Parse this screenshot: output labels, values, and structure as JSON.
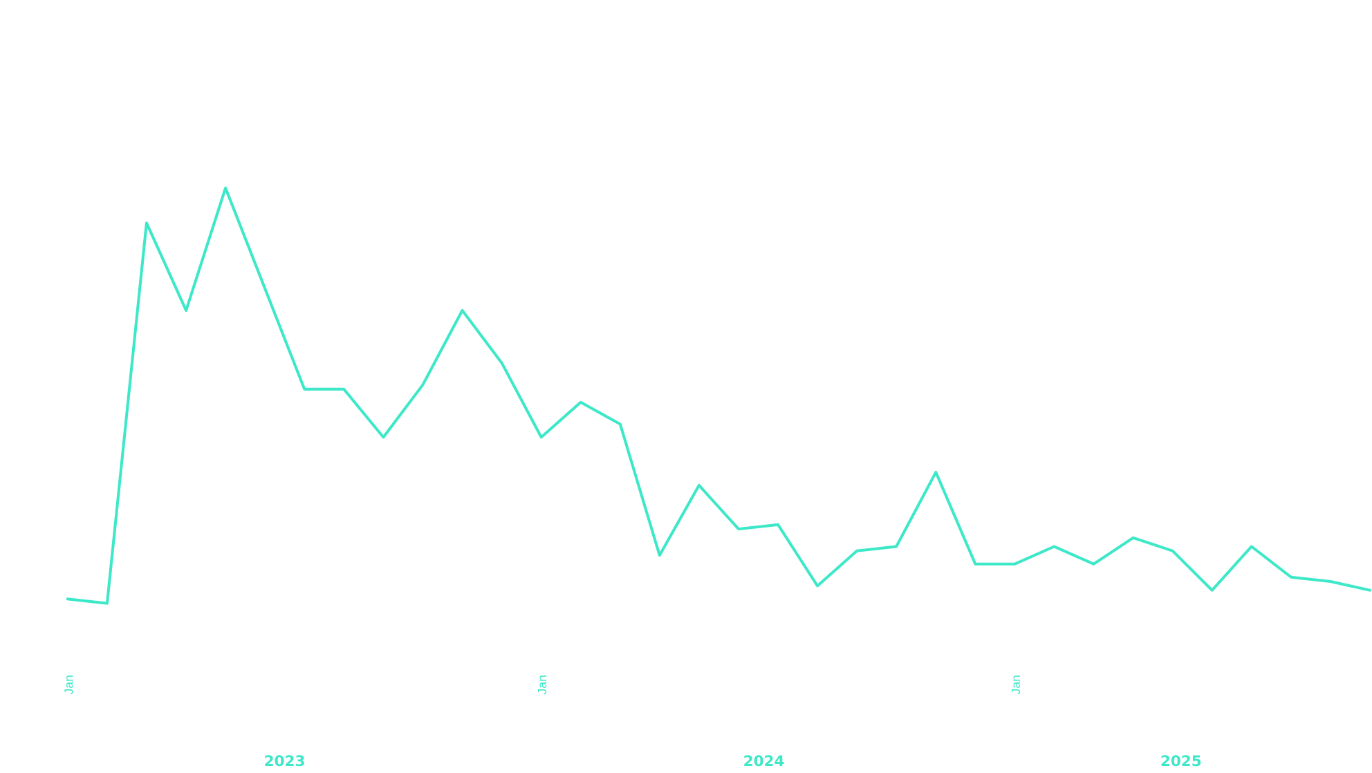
{
  "chart_data": {
    "type": "line",
    "title": "",
    "xlabel": "",
    "ylabel": "",
    "color": "#3de8c8",
    "grid": false,
    "y_axis_shown": false,
    "x": [
      "2023-01",
      "2023-02",
      "2023-03",
      "2023-04",
      "2023-05",
      "2023-06",
      "2023-07",
      "2023-08",
      "2023-09",
      "2023-10",
      "2023-11",
      "2023-12",
      "2024-01",
      "2024-02",
      "2024-03",
      "2024-04",
      "2024-05",
      "2024-06",
      "2024-07",
      "2024-08",
      "2024-09",
      "2024-10",
      "2024-11",
      "2024-12",
      "2025-01",
      "2025-02",
      "2025-03",
      "2025-04",
      "2025-05",
      "2025-06",
      "2025-07",
      "2025-08",
      "2025-09",
      "2025-10"
    ],
    "values": [
      11,
      10,
      97,
      77,
      105,
      82,
      59,
      59,
      48,
      60,
      77,
      65,
      48,
      56,
      51,
      21,
      37,
      27,
      28,
      14,
      22,
      23,
      40,
      19,
      19,
      23,
      19,
      25,
      22,
      13,
      23,
      16,
      15,
      13
    ],
    "ylim": [
      0,
      148
    ],
    "x_tick_labels": [
      "Jan",
      "Jan",
      "Jan"
    ],
    "x_year_labels": [
      "2023",
      "2024",
      "2025"
    ]
  }
}
